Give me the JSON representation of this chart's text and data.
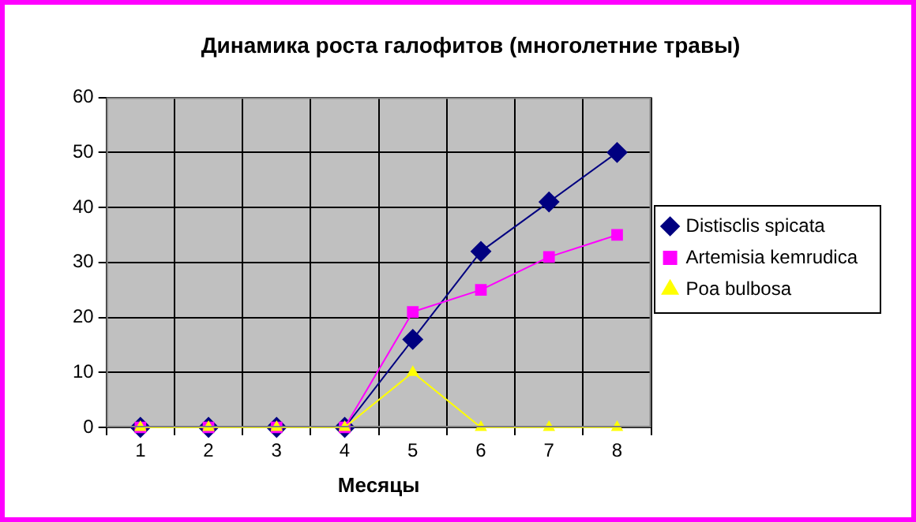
{
  "chart_data": {
    "type": "line",
    "title": "Динамика роста галофитов (многолетние травы)",
    "xlabel": "Месяцы",
    "categories": [
      "1",
      "2",
      "3",
      "4",
      "5",
      "6",
      "7",
      "8"
    ],
    "series": [
      {
        "name": "Distisclis spicata",
        "color": "#000080",
        "marker": "diamond",
        "values": [
          0,
          0,
          0,
          0,
          16,
          32,
          41,
          50
        ]
      },
      {
        "name": "Artemisia kemrudica",
        "color": "#ff00ff",
        "marker": "square",
        "values": [
          0,
          0,
          0,
          0,
          21,
          25,
          31,
          35
        ]
      },
      {
        "name": "Poa bulbosa",
        "color": "#ffff00",
        "marker": "triangle",
        "values": [
          0,
          0,
          0,
          0,
          10,
          0,
          0,
          0
        ]
      }
    ],
    "ylim": [
      0,
      60
    ],
    "yticks": [
      0,
      10,
      20,
      30,
      40,
      50,
      60
    ],
    "grid": true,
    "legend": "right"
  }
}
